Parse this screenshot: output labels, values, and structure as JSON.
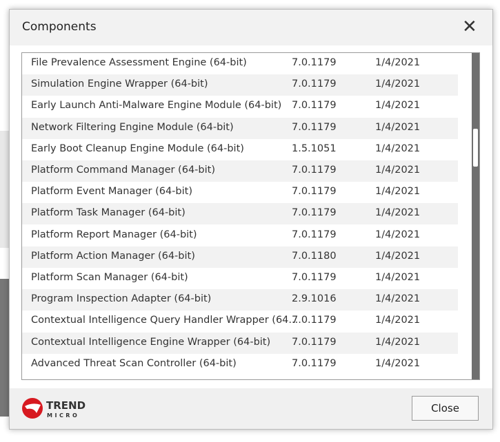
{
  "dialog": {
    "title": "Components",
    "close_button": "Close",
    "logo": {
      "line1": "TREND",
      "line2": "MICRO"
    }
  },
  "table": {
    "rows": [
      [
        "File Prevalence Assessment Engine (64-bit)",
        "7.0.1179",
        "1/4/2021"
      ],
      [
        "Simulation Engine Wrapper (64-bit)",
        "7.0.1179",
        "1/4/2021"
      ],
      [
        "Early Launch Anti-Malware Engine Module (64-bit)",
        "7.0.1179",
        "1/4/2021"
      ],
      [
        "Network Filtering Engine Module (64-bit)",
        "7.0.1179",
        "1/4/2021"
      ],
      [
        "Early Boot Cleanup Engine Module (64-bit)",
        "1.5.1051",
        "1/4/2021"
      ],
      [
        "Platform Command Manager (64-bit)",
        "7.0.1179",
        "1/4/2021"
      ],
      [
        "Platform Event Manager (64-bit)",
        "7.0.1179",
        "1/4/2021"
      ],
      [
        "Platform Task Manager (64-bit)",
        "7.0.1179",
        "1/4/2021"
      ],
      [
        "Platform Report Manager (64-bit)",
        "7.0.1179",
        "1/4/2021"
      ],
      [
        "Platform Action Manager (64-bit)",
        "7.0.1180",
        "1/4/2021"
      ],
      [
        "Platform Scan Manager (64-bit)",
        "7.0.1179",
        "1/4/2021"
      ],
      [
        "Program Inspection Adapter (64-bit)",
        "2.9.1016",
        "1/4/2021"
      ],
      [
        "Contextual Intelligence Query Handler Wrapper (64...",
        "7.0.1179",
        "1/4/2021"
      ],
      [
        "Contextual Intelligence Engine Wrapper (64-bit)",
        "7.0.1179",
        "1/4/2021"
      ],
      [
        "Advanced Threat Scan Controller (64-bit)",
        "7.0.1179",
        "1/4/2021"
      ]
    ]
  }
}
